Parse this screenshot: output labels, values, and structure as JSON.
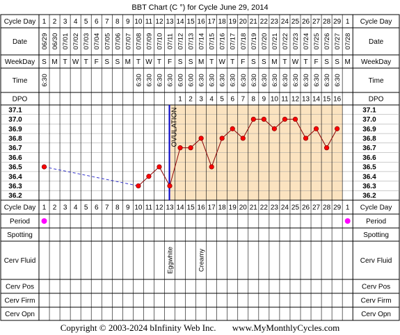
{
  "title": "BBT Chart (C °) for Cycle June 29, 2014",
  "row_labels": {
    "cycle_day": "Cycle Day",
    "date": "Date",
    "weekday": "WeekDay",
    "time": "Time",
    "dpo": "DPO",
    "period": "Period",
    "spotting": "Spotting",
    "cerv_fluid": "Cerv Fluid",
    "cerv_pos": "Cerv Pos",
    "cerv_firm": "Cerv Firm",
    "cerv_opn": "Cerv Opn"
  },
  "colors": {
    "grid": "#000000",
    "pre_ovulation_bg": "#ffffff",
    "post_ovulation_bg": "#fbe3c0",
    "marker": "#ff0000",
    "line": "#8b0000",
    "missing_line": "#3333cc",
    "ovulation_line": "#0000cc",
    "period_dot": "#ff00ff"
  },
  "chart_data": {
    "type": "line",
    "cycle_days": [
      "1",
      "2",
      "3",
      "4",
      "5",
      "6",
      "7",
      "8",
      "9",
      "10",
      "11",
      "12",
      "13",
      "14",
      "15",
      "16",
      "17",
      "18",
      "19",
      "20",
      "21",
      "22",
      "23",
      "24",
      "25",
      "26",
      "27",
      "28",
      "29",
      "1"
    ],
    "dates": [
      "06/29",
      "06/30",
      "07/01",
      "07/02",
      "07/03",
      "07/04",
      "07/05",
      "07/06",
      "07/07",
      "07/08",
      "07/09",
      "07/10",
      "07/11",
      "07/12",
      "07/13",
      "07/14",
      "07/15",
      "07/16",
      "07/17",
      "07/18",
      "07/19",
      "07/20",
      "07/21",
      "07/22",
      "07/23",
      "07/24",
      "07/25",
      "07/26",
      "07/27",
      "07/28"
    ],
    "weekdays": [
      "S",
      "M",
      "T",
      "W",
      "T",
      "F",
      "S",
      "S",
      "M",
      "T",
      "W",
      "T",
      "F",
      "S",
      "S",
      "M",
      "T",
      "W",
      "T",
      "F",
      "S",
      "S",
      "M",
      "T",
      "W",
      "T",
      "F",
      "S",
      "S",
      "M"
    ],
    "times": [
      "6:30",
      "",
      "",
      "",
      "",
      "",
      "",
      "",
      "",
      "6:30",
      "6:30",
      "6:30",
      "6:30",
      "6:00",
      "6:00",
      "6:30",
      "6:30",
      "6:30",
      "6:30",
      "6:30",
      "6:30",
      "6:30",
      "6:30",
      "6:30",
      "6:30",
      "6:30",
      "6:30",
      "6:30",
      "6:30",
      ""
    ],
    "dpo": [
      "",
      "",
      "",
      "",
      "",
      "",
      "",
      "",
      "",
      "",
      "",
      "",
      "",
      "1",
      "2",
      "3",
      "4",
      "5",
      "6",
      "7",
      "8",
      "9",
      "10",
      "11",
      "12",
      "13",
      "14",
      "15",
      "16",
      ""
    ],
    "temperatures": [
      36.5,
      null,
      null,
      null,
      null,
      null,
      null,
      null,
      null,
      36.3,
      36.4,
      36.5,
      36.3,
      36.7,
      36.7,
      36.8,
      36.5,
      36.8,
      36.9,
      36.8,
      37.0,
      37.0,
      36.9,
      37.0,
      37.0,
      36.8,
      36.9,
      36.7,
      36.9,
      null
    ],
    "temp_axis": [
      37.1,
      37.0,
      36.9,
      36.8,
      36.7,
      36.6,
      36.5,
      36.4,
      36.3,
      36.2
    ],
    "ylim": [
      36.2,
      37.1
    ],
    "ovulation_label": "OVULATION",
    "ovulation_after_day_index": 12,
    "period": [
      true,
      false,
      false,
      false,
      false,
      false,
      false,
      false,
      false,
      false,
      false,
      false,
      false,
      false,
      false,
      false,
      false,
      false,
      false,
      false,
      false,
      false,
      false,
      false,
      false,
      false,
      false,
      false,
      false,
      true
    ],
    "cerv_fluid": [
      "",
      "",
      "",
      "",
      "",
      "",
      "",
      "",
      "",
      "",
      "",
      "",
      "Eggwhite",
      "",
      "",
      "Creamy",
      "",
      "",
      "",
      "",
      "",
      "",
      "",
      "",
      "",
      "",
      "",
      "",
      "",
      ""
    ]
  },
  "footer": {
    "copyright": "Copyright © 2003-2024 bInfinity Web Inc.",
    "website": "www.MyMonthlyCycles.com"
  }
}
